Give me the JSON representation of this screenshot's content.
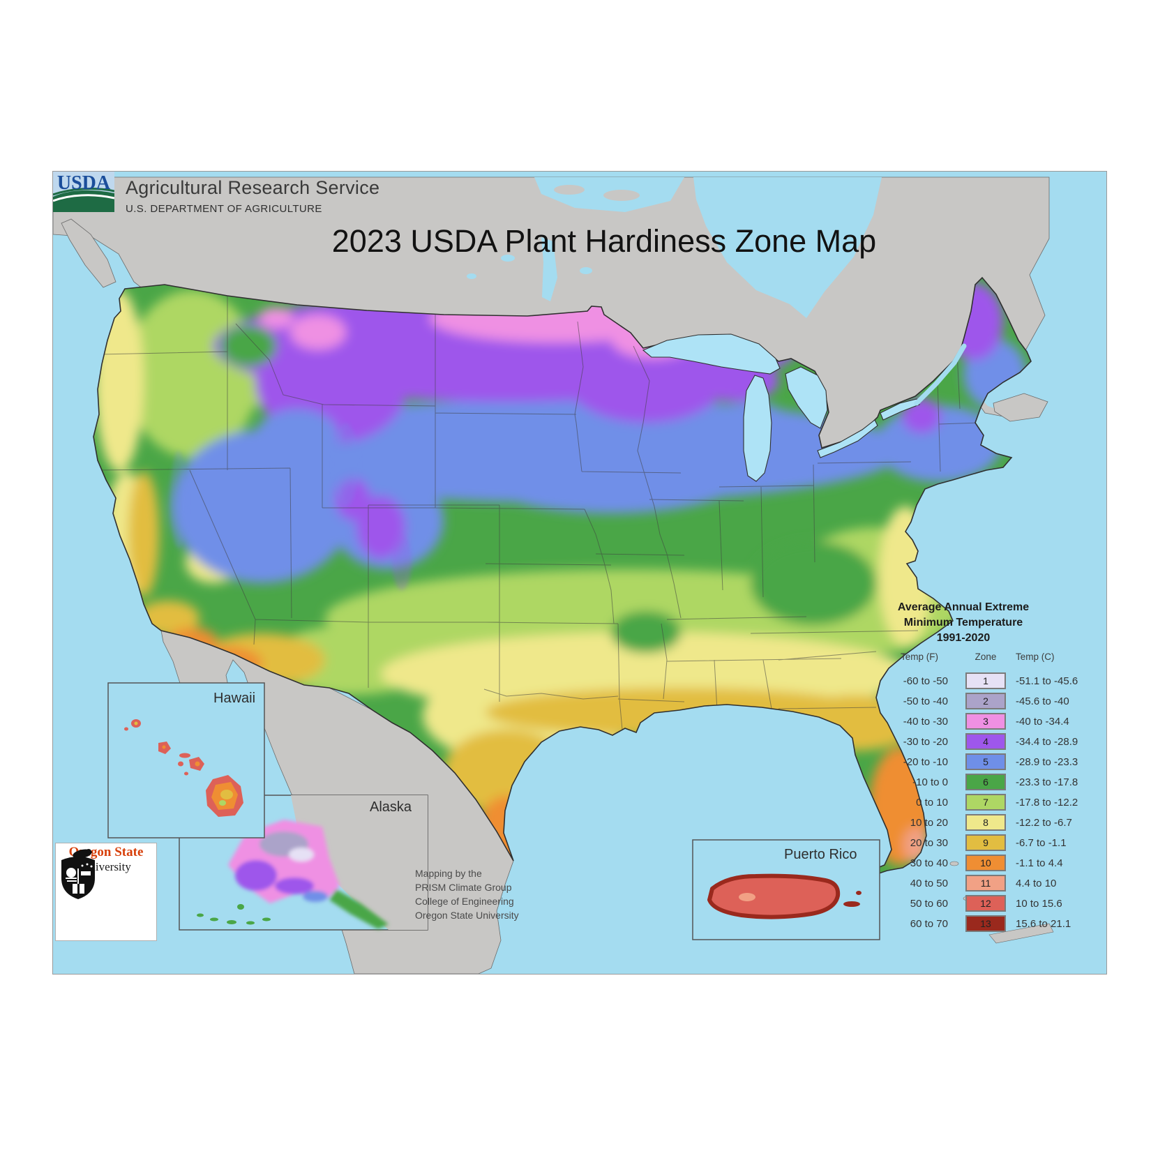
{
  "header": {
    "agency": "USDA",
    "title": "Agricultural Research Service",
    "subtitle": "U.S. DEPARTMENT OF AGRICULTURE"
  },
  "map": {
    "title": "2023 USDA Plant Hardiness Zone Map",
    "insets": {
      "hawaii": "Hawaii",
      "alaska": "Alaska",
      "puerto_rico": "Puerto Rico"
    }
  },
  "legend": {
    "title_line1": "Average Annual Extreme",
    "title_line2": "Minimum Temperature",
    "title_line3": "1991-2020",
    "columns": {
      "temp_f": "Temp (F)",
      "zone": "Zone",
      "temp_c": "Temp (C)"
    },
    "rows": [
      {
        "temp_f": "-60 to -50",
        "zone": "1",
        "temp_c": "-51.1 to -45.6",
        "color": "#E6E1F5"
      },
      {
        "temp_f": "-50 to -40",
        "zone": "2",
        "temp_c": "-45.6 to -40",
        "color": "#ABA3C9"
      },
      {
        "temp_f": "-40 to -30",
        "zone": "3",
        "temp_c": "-40 to -34.4",
        "color": "#EF90E3"
      },
      {
        "temp_f": "-30 to -20",
        "zone": "4",
        "temp_c": "-34.4 to -28.9",
        "color": "#9E57EB"
      },
      {
        "temp_f": "-20 to -10",
        "zone": "5",
        "temp_c": "-28.9 to -23.3",
        "color": "#6F8FE8"
      },
      {
        "temp_f": "-10 to 0",
        "zone": "6",
        "temp_c": "-23.3 to -17.8",
        "color": "#4AA647"
      },
      {
        "temp_f": "0 to 10",
        "zone": "7",
        "temp_c": "-17.8 to -12.2",
        "color": "#AED764"
      },
      {
        "temp_f": "10 to 20",
        "zone": "8",
        "temp_c": "-12.2 to -6.7",
        "color": "#EFE88B"
      },
      {
        "temp_f": "20 to 30",
        "zone": "9",
        "temp_c": "-6.7 to -1.1",
        "color": "#E2BD41"
      },
      {
        "temp_f": "30 to 40",
        "zone": "10",
        "temp_c": "-1.1 to 4.4",
        "color": "#EF8E33"
      },
      {
        "temp_f": "40 to 50",
        "zone": "11",
        "temp_c": "4.4 to 10",
        "color": "#F1A185"
      },
      {
        "temp_f": "50 to 60",
        "zone": "12",
        "temp_c": "10 to 15.6",
        "color": "#DD6158"
      },
      {
        "temp_f": "60 to 70",
        "zone": "13",
        "temp_c": "15.6 to 21.1",
        "color": "#9A291D"
      }
    ]
  },
  "attribution": {
    "lines": [
      "Mapping by the",
      "PRISM Climate Group",
      "College of Engineering",
      "Oregon State University"
    ]
  },
  "osu_logo": {
    "line1": "Oregon State",
    "line2": "University"
  },
  "map_colors": {
    "ocean": "#A4DCF0",
    "neighbor_land": "#C8C7C5",
    "lakes": "#AEE3F6"
  }
}
